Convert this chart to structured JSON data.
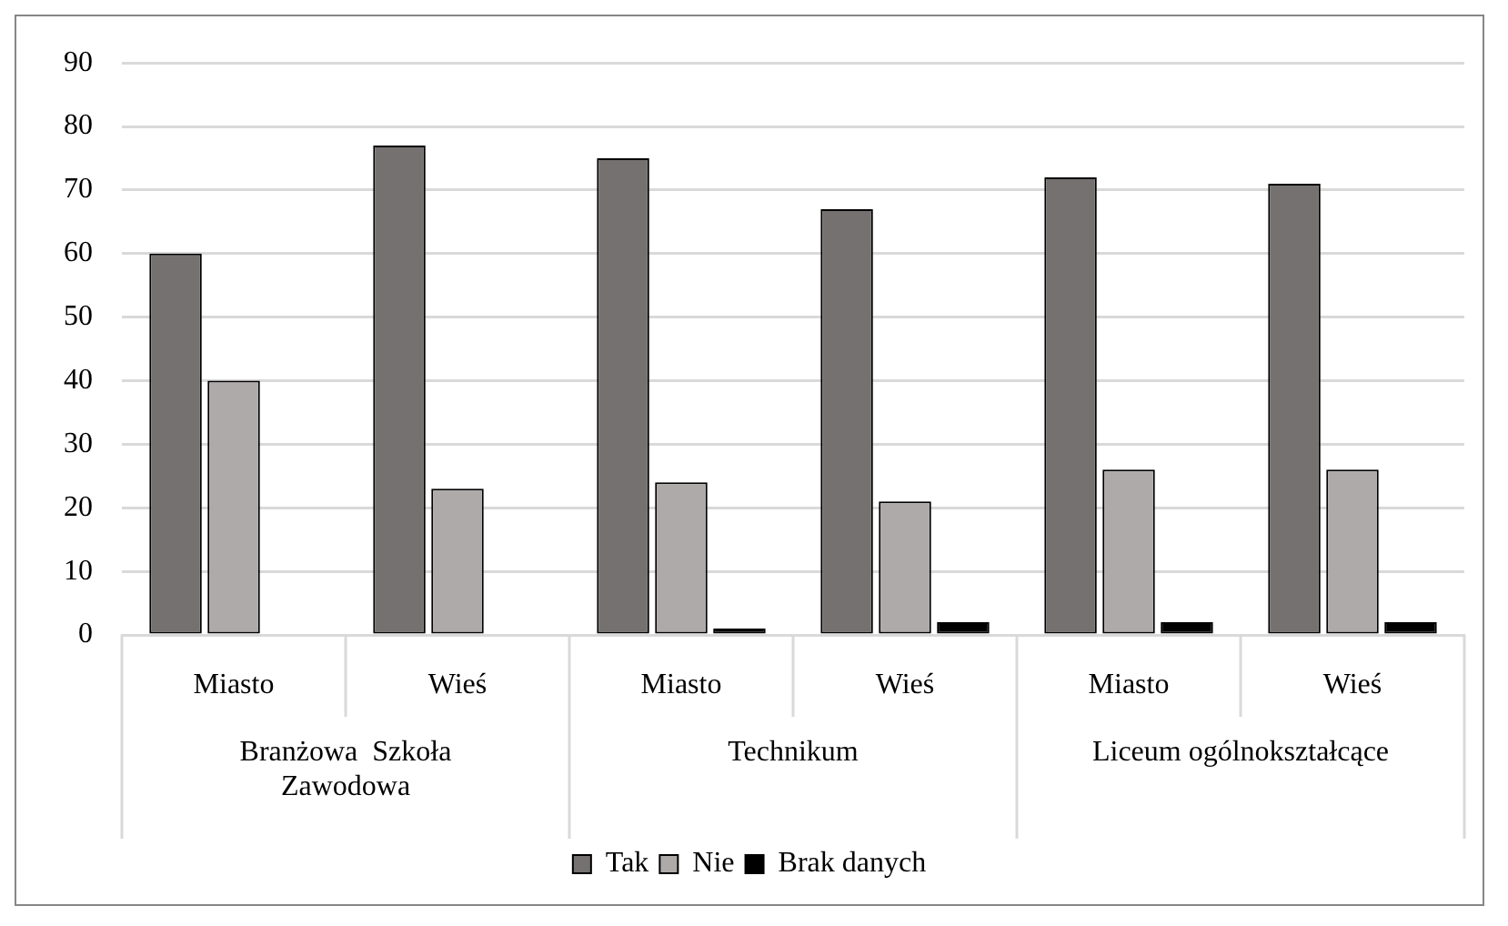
{
  "chart_data": {
    "type": "bar",
    "categories": [
      "Miasto",
      "Wieś",
      "Miasto",
      "Wieś",
      "Miasto",
      "Wieś"
    ],
    "series": [
      {
        "name": "Tak",
        "color": "#767171",
        "values": [
          60,
          77,
          75,
          67,
          72,
          71
        ]
      },
      {
        "name": "Nie",
        "color": "#aeaaaa",
        "values": [
          40,
          23,
          24,
          21,
          26,
          26
        ]
      },
      {
        "name": "Brak danych",
        "color": "#000000",
        "values": [
          0,
          0,
          1,
          2,
          2,
          2
        ]
      }
    ],
    "annotations": [
      "Branżowa  Szkoła Zawodowa",
      "Technikum",
      "Liceum ogólnokształcące"
    ],
    "ylim": [
      0,
      90
    ],
    "yticks": [
      0,
      10,
      20,
      30,
      40,
      50,
      60,
      70,
      80,
      90
    ],
    "grid": "y",
    "legend": "bottom"
  }
}
